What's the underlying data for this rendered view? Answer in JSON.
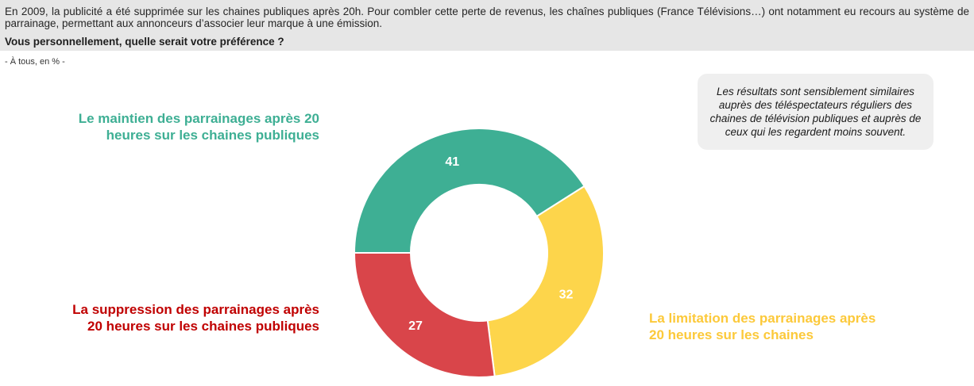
{
  "header": {
    "intro": "En 2009, la publicité a été supprimée sur les chaines publiques après 20h. Pour combler cette perte de revenus, les chaînes publiques (France Télévisions…) ont notamment eu recours au système de parrainage, permettant aux annonceurs d’associer leur marque à une émission.",
    "question": "Vous personnellement, quelle serait votre préférence ?"
  },
  "base": "- À tous, en % -",
  "note": "Les résultats sont sensiblement similaires auprès des téléspectateurs réguliers des chaines de télévision publiques et auprès de ceux qui les regardent moins souvent.",
  "chart_data": {
    "type": "pie",
    "variant": "donut",
    "unit": "%",
    "categories": [
      "Le maintien des parrainages après 20 heures sur les chaines publiques",
      "La limitation des parrainages après 20 heures sur les chaines",
      "La suppression des parrainages après 20 heures sur les chaines publiques"
    ],
    "values": [
      41,
      32,
      27
    ],
    "colors": [
      "#3eaf94",
      "#fdd54b",
      "#d9454a"
    ],
    "label_colors": [
      "#3eaf94",
      "#fcc93a",
      "#c00000"
    ]
  }
}
